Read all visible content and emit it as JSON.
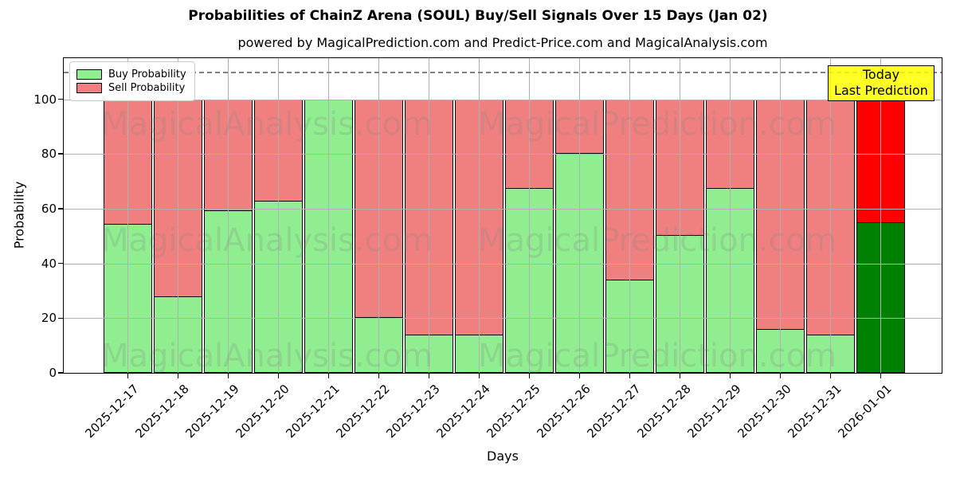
{
  "title": "Probabilities of ChainZ Arena (SOUL) Buy/Sell Signals Over 15 Days (Jan 02)",
  "subtitle": "powered by MagicalPrediction.com and Predict-Price.com and MagicalAnalysis.com",
  "today_label": {
    "line1": "Today",
    "line2": "Last Prediction"
  },
  "watermarks": {
    "left_text": "MagicalAnalysis.com",
    "right_text": "MagicalPrediction.com"
  },
  "legend": {
    "items": [
      {
        "label": "Buy Probability",
        "color": "#90EE90"
      },
      {
        "label": "Sell Probability",
        "color": "#F08080"
      }
    ]
  },
  "chart_data": {
    "type": "bar",
    "stacked": true,
    "title": "Probabilities of ChainZ Arena (SOUL) Buy/Sell Signals Over 15 Days (Jan 02)",
    "xlabel": "Days",
    "ylabel": "Probability",
    "categories": [
      "2025-12-17",
      "2025-12-18",
      "2025-12-19",
      "2025-12-20",
      "2025-12-21",
      "2025-12-22",
      "2025-12-23",
      "2025-12-24",
      "2025-12-25",
      "2025-12-26",
      "2025-12-27",
      "2025-12-28",
      "2025-12-29",
      "2025-12-30",
      "2025-12-31",
      "2026-01-01"
    ],
    "series": [
      {
        "name": "Buy Probability",
        "color": "#90EE90",
        "values": [
          54.5,
          28,
          59.5,
          63,
          100,
          20.5,
          14,
          14,
          67.5,
          80.5,
          34,
          50.5,
          67.5,
          16,
          14,
          55
        ]
      },
      {
        "name": "Sell Probability",
        "color": "#F08080",
        "values": [
          45.5,
          72,
          40.5,
          37,
          0,
          79.5,
          86,
          86,
          32.5,
          19.5,
          66,
          49.5,
          32.5,
          84,
          86,
          45
        ]
      }
    ],
    "highlight_last_bar": {
      "buy_color": "#008000",
      "sell_color": "#FF0000"
    },
    "bar_edge_color": "#000000",
    "ylim": [
      0,
      115
    ],
    "yticks": [
      0,
      20,
      40,
      60,
      80,
      100
    ],
    "dashed_hline": 110,
    "grid": true,
    "legend_position": "upper left"
  },
  "colors": {
    "grid": "#b0b0b0",
    "dashed_line": "#808080",
    "today_box_bg": "#ffff00",
    "today_box_border": "#000000",
    "watermark": "rgba(128,128,128,0.22)"
  }
}
